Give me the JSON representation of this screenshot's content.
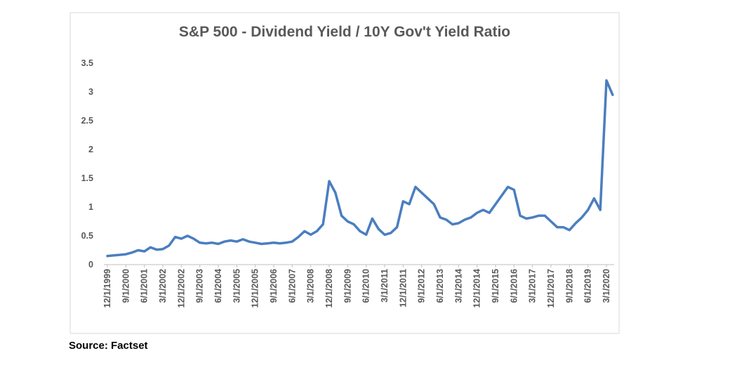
{
  "chart_data": {
    "type": "line",
    "title": "S&P 500 - Dividend Yield / 10Y Gov't Yield Ratio",
    "source": "Source: Factset",
    "categories": [
      "12/1/1999",
      null,
      null,
      "9/1/2000",
      null,
      null,
      "6/1/2001",
      null,
      null,
      "3/1/2002",
      null,
      null,
      "12/1/2002",
      null,
      null,
      "9/1/2003",
      null,
      null,
      "6/1/2004",
      null,
      null,
      "3/1/2005",
      null,
      null,
      "12/1/2005",
      null,
      null,
      "9/1/2006",
      null,
      null,
      "6/1/2007",
      null,
      null,
      "3/1/2008",
      null,
      null,
      "12/1/2008",
      null,
      null,
      "9/1/2009",
      null,
      null,
      "6/1/2010",
      null,
      null,
      "3/1/2011",
      null,
      null,
      "12/1/2011",
      null,
      null,
      "9/1/2012",
      null,
      null,
      "6/1/2013",
      null,
      null,
      "3/1/2014",
      null,
      null,
      "12/1/2014",
      null,
      null,
      "9/1/2015",
      null,
      null,
      "6/1/2016",
      null,
      null,
      "3/1/2017",
      null,
      null,
      "12/1/2017",
      null,
      null,
      "9/1/2018",
      null,
      null,
      "6/1/2019",
      null,
      null,
      "3/1/2020",
      null
    ],
    "values": [
      0.15,
      0.16,
      0.17,
      0.18,
      0.21,
      0.25,
      0.23,
      0.3,
      0.26,
      0.27,
      0.33,
      0.48,
      0.45,
      0.5,
      0.45,
      0.38,
      0.37,
      0.38,
      0.36,
      0.4,
      0.42,
      0.4,
      0.44,
      0.4,
      0.38,
      0.36,
      0.37,
      0.38,
      0.37,
      0.38,
      0.4,
      0.48,
      0.58,
      0.52,
      0.58,
      0.7,
      1.45,
      1.25,
      0.85,
      0.75,
      0.7,
      0.58,
      0.52,
      0.8,
      0.62,
      0.52,
      0.55,
      0.65,
      1.1,
      1.05,
      1.35,
      1.25,
      1.15,
      1.05,
      0.82,
      0.78,
      0.7,
      0.72,
      0.78,
      0.82,
      0.9,
      0.95,
      0.9,
      1.05,
      1.2,
      1.35,
      1.3,
      0.85,
      0.8,
      0.82,
      0.85,
      0.85,
      0.75,
      0.65,
      0.65,
      0.6,
      0.72,
      0.82,
      0.95,
      1.15,
      0.95,
      3.2,
      2.95
    ],
    "color": "#4a7ec0",
    "ylim": [
      0,
      3.5
    ],
    "yticks": [
      0,
      0.5,
      1,
      1.5,
      2,
      2.5,
      3,
      3.5
    ],
    "grid": false
  }
}
